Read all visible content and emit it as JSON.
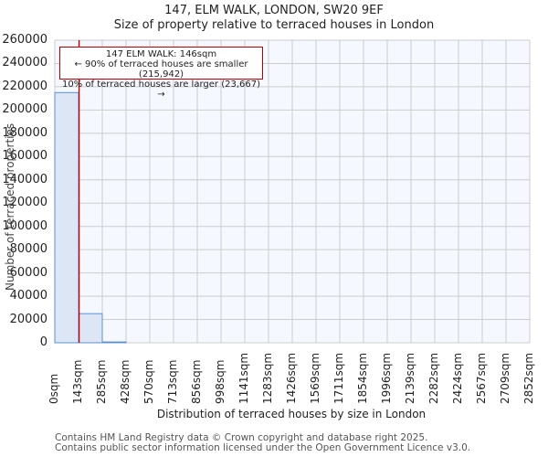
{
  "header": {
    "title": "147, ELM WALK, LONDON, SW20 9EF",
    "subtitle": "Size of property relative to terraced houses in London"
  },
  "annotation": {
    "line1": "147 ELM WALK: 146sqm",
    "line2": "← 90% of terraced houses are smaller (215,942)",
    "line3": "10% of terraced houses are larger (23,667) →"
  },
  "axes": {
    "y_title": "Number of terraced properties",
    "x_title": "Distribution of terraced houses by size in London",
    "y_ticks": [
      "0",
      "20000",
      "40000",
      "60000",
      "80000",
      "100000",
      "120000",
      "140000",
      "160000",
      "180000",
      "200000",
      "220000",
      "240000",
      "260000"
    ],
    "x_ticks": [
      "0sqm",
      "143sqm",
      "285sqm",
      "428sqm",
      "570sqm",
      "713sqm",
      "856sqm",
      "998sqm",
      "1141sqm",
      "1283sqm",
      "1426sqm",
      "1569sqm",
      "1711sqm",
      "1854sqm",
      "1996sqm",
      "2139sqm",
      "2282sqm",
      "2424sqm",
      "2567sqm",
      "2709sqm",
      "2852sqm"
    ]
  },
  "footer": {
    "line1": "Contains HM Land Registry data © Crown copyright and database right 2025.",
    "line2": "Contains public sector information licensed under the Open Government Licence v3.0."
  },
  "colors": {
    "bar_fill": "#dce6f4",
    "bar_edge": "#5b8fd0",
    "marker": "#c00000",
    "plot_bg": "#f5f8ff",
    "grid": "#cccccc"
  },
  "chart_data": {
    "type": "bar",
    "title": "147, ELM WALK, LONDON, SW20 9EF",
    "subtitle": "Size of property relative to terraced houses in London",
    "xlabel": "Distribution of terraced houses by size in London",
    "ylabel": "Number of terraced properties",
    "categories": [
      "0-143sqm",
      "143-285sqm",
      "285-428sqm",
      "428-570sqm",
      "570-713sqm",
      "713-856sqm",
      "856-998sqm",
      "998-1141sqm",
      "1141-1283sqm",
      "1283-1426sqm",
      "1426-1569sqm",
      "1569-1711sqm",
      "1711-1854sqm",
      "1854-1996sqm",
      "1996-2139sqm",
      "2139-2282sqm",
      "2282-2424sqm",
      "2424-2567sqm",
      "2567-2709sqm",
      "2709-2852sqm"
    ],
    "values": [
      215000,
      25000,
      700,
      0,
      0,
      0,
      0,
      0,
      0,
      0,
      0,
      0,
      0,
      0,
      0,
      0,
      0,
      0,
      0,
      0
    ],
    "ylim": [
      0,
      260000
    ],
    "grid": true,
    "marker": {
      "x": "146sqm",
      "label": "147 ELM WALK: 146sqm"
    },
    "annotations": [
      "147 ELM WALK: 146sqm",
      "← 90% of terraced houses are smaller (215,942)",
      "10% of terraced houses are larger (23,667) →"
    ]
  }
}
